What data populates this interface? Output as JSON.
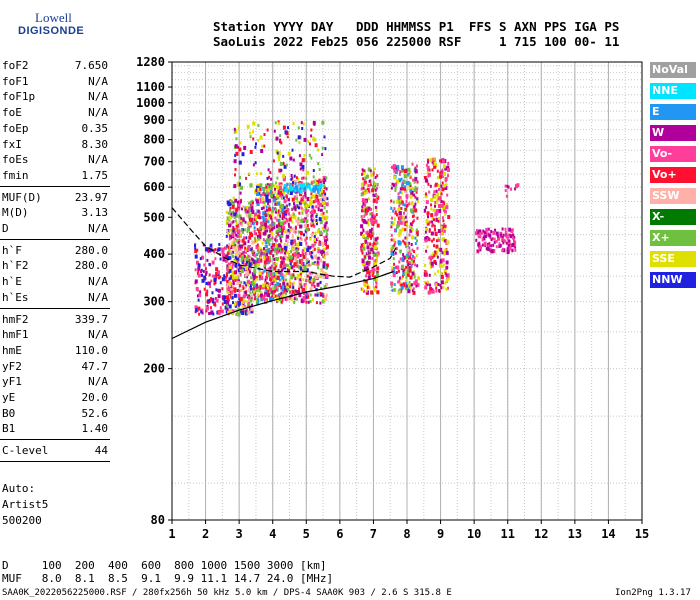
{
  "logo": {
    "line1": "Lowell",
    "line2": "DIGISONDE"
  },
  "header": {
    "row1": "Station YYYY DAY   DDD HHMMSS P1  FFS S AXN PPS IGA PS",
    "row2": "SaoLuis 2022 Feb25 056 225000 RSF     1 715 100 00- 11"
  },
  "params": [
    {
      "name": "foF2",
      "value": "7.650"
    },
    {
      "name": "foF1",
      "value": "N/A"
    },
    {
      "name": "foF1p",
      "value": "N/A"
    },
    {
      "name": "foE",
      "value": "N/A"
    },
    {
      "name": "foEp",
      "value": "0.35"
    },
    {
      "name": "fxI",
      "value": "8.30"
    },
    {
      "name": "foEs",
      "value": "N/A"
    },
    {
      "name": "fmin",
      "value": "1.75"
    },
    {
      "name": "MUF(D)",
      "value": "23.97"
    },
    {
      "name": "M(D)",
      "value": "3.13"
    },
    {
      "name": "D",
      "value": "N/A"
    },
    {
      "name": "h`F",
      "value": "280.0"
    },
    {
      "name": "h`F2",
      "value": "280.0"
    },
    {
      "name": "h`E",
      "value": "N/A"
    },
    {
      "name": "h`Es",
      "value": "N/A"
    },
    {
      "name": "hmF2",
      "value": "339.7"
    },
    {
      "name": "hmF1",
      "value": "N/A"
    },
    {
      "name": "hmE",
      "value": "110.0"
    },
    {
      "name": "yF2",
      "value": "47.7"
    },
    {
      "name": "yF1",
      "value": "N/A"
    },
    {
      "name": "yE",
      "value": "20.0"
    },
    {
      "name": "B0",
      "value": "52.6"
    },
    {
      "name": "B1",
      "value": "1.40"
    },
    {
      "name": "C-level",
      "value": "44"
    }
  ],
  "auto": {
    "l1": "Auto:",
    "l2": "Artist5",
    "l3": "500200"
  },
  "legend": [
    {
      "label": "NoVal",
      "color": "#a0a0a0"
    },
    {
      "label": "NNE",
      "color": "#00e5ff"
    },
    {
      "label": "E",
      "color": "#2196f3"
    },
    {
      "label": "W",
      "color": "#b0009c"
    },
    {
      "label": "Vo-",
      "color": "#ff3d9a"
    },
    {
      "label": "Vo+",
      "color": "#ff1030"
    },
    {
      "label": "SSW",
      "color": "#ffb0a8"
    },
    {
      "label": "X-",
      "color": "#007a00"
    },
    {
      "label": "X+",
      "color": "#70c040"
    },
    {
      "label": "SSE",
      "color": "#e0e000"
    },
    {
      "label": "NNW",
      "color": "#2020e0"
    }
  ],
  "bottom": {
    "d_row": "D     100  200  400  600  800 1000 1500 3000 [km]",
    "muf_row": "MUF   8.0  8.1  8.5  9.1  9.9 11.1 14.7 24.0 [MHz]",
    "footer_left": "SAA0K_2022056225000.RSF / 280fx256h 50 kHz 5.0 km / DPS-4 SAA0K 903 / 2.6 S 315.8 E",
    "footer_right": "Ion2Png 1.3.17"
  },
  "chart_data": {
    "type": "scatter",
    "xlim": [
      1,
      15
    ],
    "ylim": [
      80,
      1280
    ],
    "x_ticks": [
      1,
      2,
      3,
      4,
      5,
      6,
      7,
      8,
      9,
      10,
      11,
      12,
      13,
      14,
      15
    ],
    "y_ticks": [
      80,
      200,
      300,
      400,
      500,
      600,
      700,
      800,
      900,
      1000,
      1100,
      1280
    ],
    "y_scale": "log",
    "grid": true,
    "clusters": [
      {
        "x": [
          1.65,
          2.6
        ],
        "y": [
          280,
          430
        ],
        "weight": 160,
        "colors": [
          "#2020e0",
          "#b0009c",
          "#ff1030",
          "#ff3d9a"
        ]
      },
      {
        "x": [
          2.6,
          3.4
        ],
        "y": [
          280,
          560
        ],
        "weight": 520,
        "colors": [
          "#b0009c",
          "#ff1030",
          "#ff3d9a",
          "#2020e0",
          "#e0e000",
          "#70c040",
          "#ffb0a8"
        ]
      },
      {
        "x": [
          3.4,
          4.3
        ],
        "y": [
          300,
          620
        ],
        "weight": 600,
        "colors": [
          "#b0009c",
          "#ff1030",
          "#ff3d9a",
          "#e0e000",
          "#70c040",
          "#2196f3"
        ]
      },
      {
        "x": [
          4.3,
          5.6
        ],
        "y": [
          300,
          650
        ],
        "weight": 620,
        "colors": [
          "#b0009c",
          "#ff1030",
          "#ff3d9a",
          "#e0e000",
          "#70c040",
          "#2020e0",
          "#ffb0a8"
        ]
      },
      {
        "x": [
          2.8,
          5.6
        ],
        "y": [
          560,
          900
        ],
        "weight": 160,
        "colors": [
          "#b0009c",
          "#ff1030",
          "#2020e0",
          "#e0e000",
          "#70c040"
        ]
      },
      {
        "x": [
          4.3,
          5.4
        ],
        "y": [
          590,
          620
        ],
        "weight": 70,
        "colors": [
          "#2196f3",
          "#00e5ff"
        ]
      },
      {
        "x": [
          6.6,
          7.1
        ],
        "y": [
          320,
          680
        ],
        "weight": 260,
        "colors": [
          "#b0009c",
          "#ff1030",
          "#ff3d9a",
          "#e0e000",
          "#70c040"
        ]
      },
      {
        "x": [
          7.5,
          8.3
        ],
        "y": [
          320,
          700
        ],
        "weight": 330,
        "colors": [
          "#b0009c",
          "#ff1030",
          "#ff3d9a",
          "#e0e000",
          "#70c040",
          "#2196f3"
        ]
      },
      {
        "x": [
          8.5,
          9.2
        ],
        "y": [
          320,
          720
        ],
        "weight": 260,
        "colors": [
          "#b0009c",
          "#ff1030",
          "#ff3d9a",
          "#e0e000"
        ]
      },
      {
        "x": [
          10.0,
          11.2
        ],
        "y": [
          410,
          470
        ],
        "weight": 110,
        "colors": [
          "#b0009c",
          "#ff3d9a"
        ]
      },
      {
        "x": [
          10.9,
          11.4
        ],
        "y": [
          570,
          620
        ],
        "weight": 10,
        "colors": [
          "#b0009c",
          "#ff3d9a"
        ]
      }
    ],
    "trace": {
      "lower": [
        [
          1,
          240
        ],
        [
          2,
          265
        ],
        [
          3,
          285
        ],
        [
          4,
          302
        ],
        [
          5,
          318
        ],
        [
          6,
          330
        ],
        [
          7,
          345
        ],
        [
          7.6,
          360
        ]
      ],
      "upper": [
        [
          1,
          530
        ],
        [
          1.6,
          460
        ],
        [
          2,
          420
        ],
        [
          2.6,
          390
        ],
        [
          3,
          375
        ],
        [
          4,
          360
        ],
        [
          5,
          360
        ],
        [
          5.8,
          350
        ],
        [
          6.3,
          348
        ],
        [
          7,
          370
        ],
        [
          7.5,
          390
        ],
        [
          7.7,
          420
        ]
      ]
    }
  }
}
